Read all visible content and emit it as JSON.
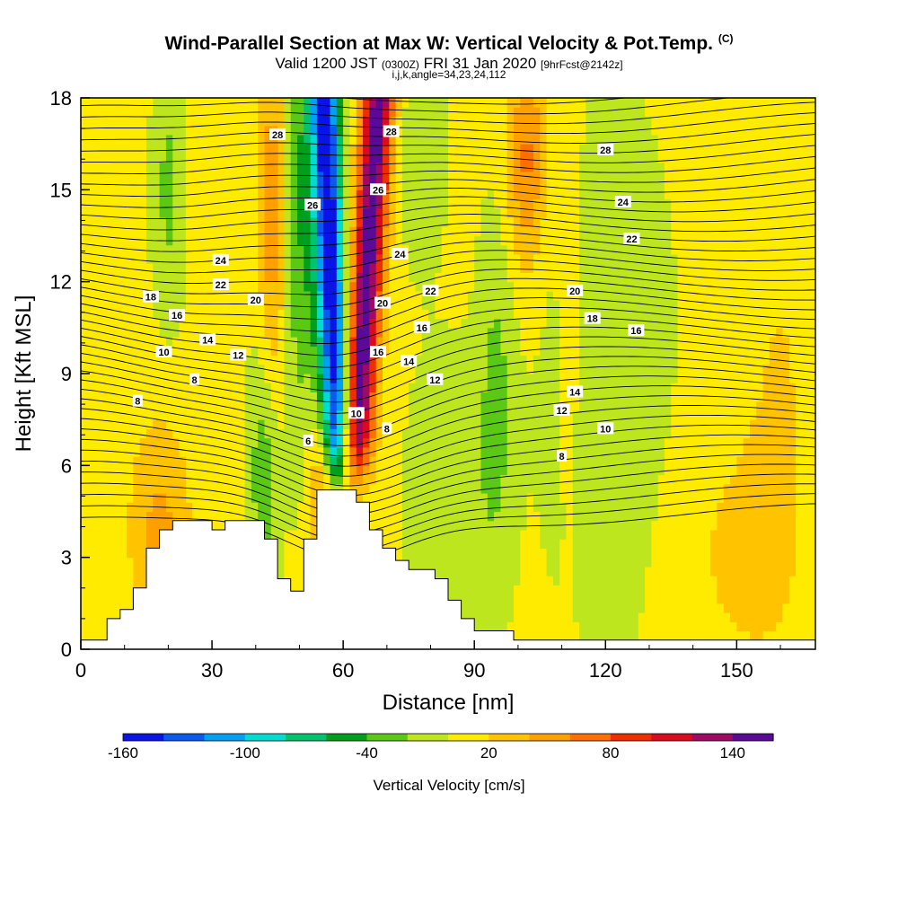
{
  "title": {
    "main": "Wind-Parallel Section at Max W: Vertical Velocity & Pot.Temp.",
    "copyright": "(C)",
    "valid_a": "Valid 1200 JST",
    "valid_utc": "(0300Z)",
    "valid_b": "FRI 31 Jan 2020",
    "forecast": "[9hrFcst@2142z]",
    "indices": "i,j,k,angle=34,23,24,112"
  },
  "chart_data": {
    "type": "heatmap",
    "xlabel": "Distance [nm]",
    "ylabel": "Height [Kft MSL]",
    "xlim": [
      0,
      168
    ],
    "ylim": [
      0,
      18
    ],
    "x_ticks": [
      0,
      30,
      60,
      90,
      120,
      150
    ],
    "y_ticks": [
      0,
      3,
      6,
      9,
      12,
      15,
      18
    ],
    "grid": false,
    "colorbar": {
      "label": "Vertical Velocity [cm/s]",
      "tick_labels": [
        "-160",
        "-100",
        "-40",
        "20",
        "80",
        "140"
      ],
      "min": -160,
      "max": 160,
      "step": 20,
      "colors": [
        "#0a14e6",
        "#0a5af0",
        "#00a0f5",
        "#00dcd2",
        "#00c36e",
        "#00a01e",
        "#5ac814",
        "#bee61e",
        "#ffeb00",
        "#ffc300",
        "#ffa000",
        "#ff6e00",
        "#f02d00",
        "#dc0a1e",
        "#a00a64",
        "#5a0a96"
      ]
    },
    "shaded_field": "Vertical Velocity [cm/s]",
    "contour_field": "Potential temperature",
    "terrain_profile": {
      "distance_nm": [
        0,
        6,
        9,
        12,
        15,
        18,
        21,
        24,
        27,
        30,
        33,
        36,
        39,
        42,
        45,
        48,
        51,
        54,
        57,
        60,
        63,
        66,
        69,
        72,
        75,
        78,
        81,
        84,
        87,
        90,
        93,
        96,
        99,
        102,
        105,
        108,
        168
      ],
      "height_kft": [
        0.3,
        1.0,
        1.3,
        2.0,
        3.3,
        3.9,
        4.2,
        4.2,
        4.2,
        3.9,
        4.2,
        4.2,
        4.2,
        3.6,
        2.3,
        1.9,
        3.6,
        5.2,
        5.2,
        5.2,
        4.8,
        3.9,
        3.3,
        2.9,
        2.6,
        2.6,
        2.3,
        1.6,
        1.0,
        0.6,
        0.6,
        0.6,
        0.3,
        0.3,
        0.3,
        0.3,
        0.3
      ]
    },
    "peak_updraft": {
      "distance_nm": 64,
      "value_cms": 150
    },
    "peak_downdraft": {
      "distance_nm": 58,
      "value_cms": -160
    },
    "contour_labels": [
      {
        "text": "28",
        "x": 45,
        "y": 16.8
      },
      {
        "text": "28",
        "x": 71,
        "y": 16.9
      },
      {
        "text": "28",
        "x": 120,
        "y": 16.3
      },
      {
        "text": "26",
        "x": 53,
        "y": 14.5
      },
      {
        "text": "26",
        "x": 68,
        "y": 15.0
      },
      {
        "text": "24",
        "x": 124,
        "y": 14.6
      },
      {
        "text": "24",
        "x": 32,
        "y": 12.7
      },
      {
        "text": "24",
        "x": 73,
        "y": 12.9
      },
      {
        "text": "22",
        "x": 126,
        "y": 13.4
      },
      {
        "text": "22",
        "x": 32,
        "y": 11.9
      },
      {
        "text": "22",
        "x": 80,
        "y": 11.7
      },
      {
        "text": "20",
        "x": 40,
        "y": 11.4
      },
      {
        "text": "20",
        "x": 69,
        "y": 11.3
      },
      {
        "text": "20",
        "x": 113,
        "y": 11.7
      },
      {
        "text": "18",
        "x": 16,
        "y": 11.5
      },
      {
        "text": "16",
        "x": 22,
        "y": 10.9
      },
      {
        "text": "16",
        "x": 78,
        "y": 10.5
      },
      {
        "text": "18",
        "x": 117,
        "y": 10.8
      },
      {
        "text": "16",
        "x": 127,
        "y": 10.4
      },
      {
        "text": "14",
        "x": 29,
        "y": 10.1
      },
      {
        "text": "16",
        "x": 68,
        "y": 9.7
      },
      {
        "text": "14",
        "x": 75,
        "y": 9.4
      },
      {
        "text": "10",
        "x": 19,
        "y": 9.7
      },
      {
        "text": "12",
        "x": 36,
        "y": 9.6
      },
      {
        "text": "12",
        "x": 81,
        "y": 8.8
      },
      {
        "text": "8",
        "x": 26,
        "y": 8.8
      },
      {
        "text": "14",
        "x": 113,
        "y": 8.4
      },
      {
        "text": "8",
        "x": 13,
        "y": 8.1
      },
      {
        "text": "10",
        "x": 63,
        "y": 7.7
      },
      {
        "text": "12",
        "x": 110,
        "y": 7.8
      },
      {
        "text": "8",
        "x": 70,
        "y": 7.2
      },
      {
        "text": "10",
        "x": 120,
        "y": 7.2
      },
      {
        "text": "6",
        "x": 52,
        "y": 6.8
      },
      {
        "text": "8",
        "x": 110,
        "y": 6.3
      }
    ]
  }
}
